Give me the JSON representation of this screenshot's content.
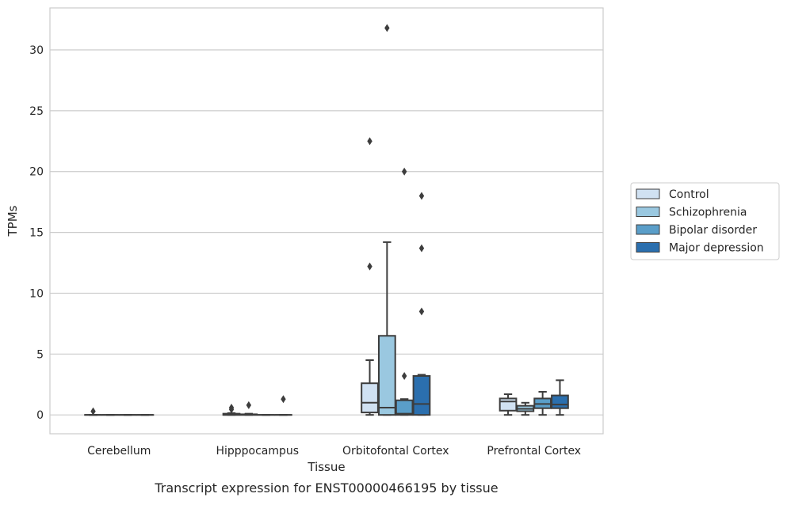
{
  "chart_data": {
    "type": "box",
    "title": "Transcript expression for ENST00000466195 by tissue",
    "xlabel": "Tissue",
    "ylabel": "TPMs",
    "ylim": [
      -1.55,
      33.45
    ],
    "yticks": [
      0,
      5,
      10,
      15,
      20,
      25,
      30
    ],
    "grid": "horizontal",
    "legend_position": "right",
    "categories": [
      "Cerebellum",
      "Hipppocampus",
      "Orbitofontal Cortex",
      "Prefrontal Cortex"
    ],
    "series": [
      {
        "name": "Control",
        "color": "#d0e1f2",
        "boxes": [
          {
            "whislo": 0,
            "q1": 0,
            "median": 0,
            "q3": 0,
            "whishi": 0,
            "fliers": [
              0.3
            ]
          },
          {
            "whislo": 0,
            "q1": 0,
            "median": 0,
            "q3": 0.1,
            "whishi": 0.15,
            "fliers": [
              0.45,
              0.6
            ]
          },
          {
            "whislo": 0,
            "q1": 0.2,
            "median": 1.0,
            "q3": 2.6,
            "whishi": 4.5,
            "fliers": [
              12.2,
              22.5
            ]
          },
          {
            "whislo": 0,
            "q1": 0.35,
            "median": 1.1,
            "q3": 1.35,
            "whishi": 1.7,
            "fliers": []
          }
        ]
      },
      {
        "name": "Schizophrenia",
        "color": "#9ac8e0",
        "boxes": [
          {
            "whislo": 0,
            "q1": 0,
            "median": 0,
            "q3": 0,
            "whishi": 0,
            "fliers": []
          },
          {
            "whislo": 0,
            "q1": 0,
            "median": 0,
            "q3": 0.05,
            "whishi": 0.1,
            "fliers": [
              0.8
            ]
          },
          {
            "whislo": 0,
            "q1": 0,
            "median": 0.6,
            "q3": 6.5,
            "whishi": 14.2,
            "fliers": [
              31.8
            ]
          },
          {
            "whislo": 0,
            "q1": 0.3,
            "median": 0.5,
            "q3": 0.75,
            "whishi": 1.0,
            "fliers": []
          }
        ]
      },
      {
        "name": "Bipolar disorder",
        "color": "#5a9ec9",
        "boxes": [
          {
            "whislo": 0,
            "q1": 0,
            "median": 0,
            "q3": 0,
            "whishi": 0,
            "fliers": []
          },
          {
            "whislo": 0,
            "q1": 0,
            "median": 0,
            "q3": 0,
            "whishi": 0,
            "fliers": []
          },
          {
            "whislo": 0,
            "q1": 0,
            "median": 0.1,
            "q3": 1.2,
            "whishi": 1.3,
            "fliers": [
              3.2,
              20.0
            ]
          },
          {
            "whislo": 0,
            "q1": 0.55,
            "median": 0.9,
            "q3": 1.35,
            "whishi": 1.9,
            "fliers": []
          }
        ]
      },
      {
        "name": "Major depression",
        "color": "#2b6fae",
        "boxes": [
          {
            "whislo": 0,
            "q1": 0,
            "median": 0,
            "q3": 0,
            "whishi": 0,
            "fliers": []
          },
          {
            "whislo": 0,
            "q1": 0,
            "median": 0,
            "q3": 0,
            "whishi": 0,
            "fliers": [
              1.3
            ]
          },
          {
            "whislo": 0,
            "q1": 0,
            "median": 0.9,
            "q3": 3.2,
            "whishi": 3.3,
            "fliers": [
              8.5,
              13.7,
              18.0
            ]
          },
          {
            "whislo": 0,
            "q1": 0.55,
            "median": 0.85,
            "q3": 1.6,
            "whishi": 2.85,
            "fliers": []
          }
        ]
      }
    ]
  }
}
